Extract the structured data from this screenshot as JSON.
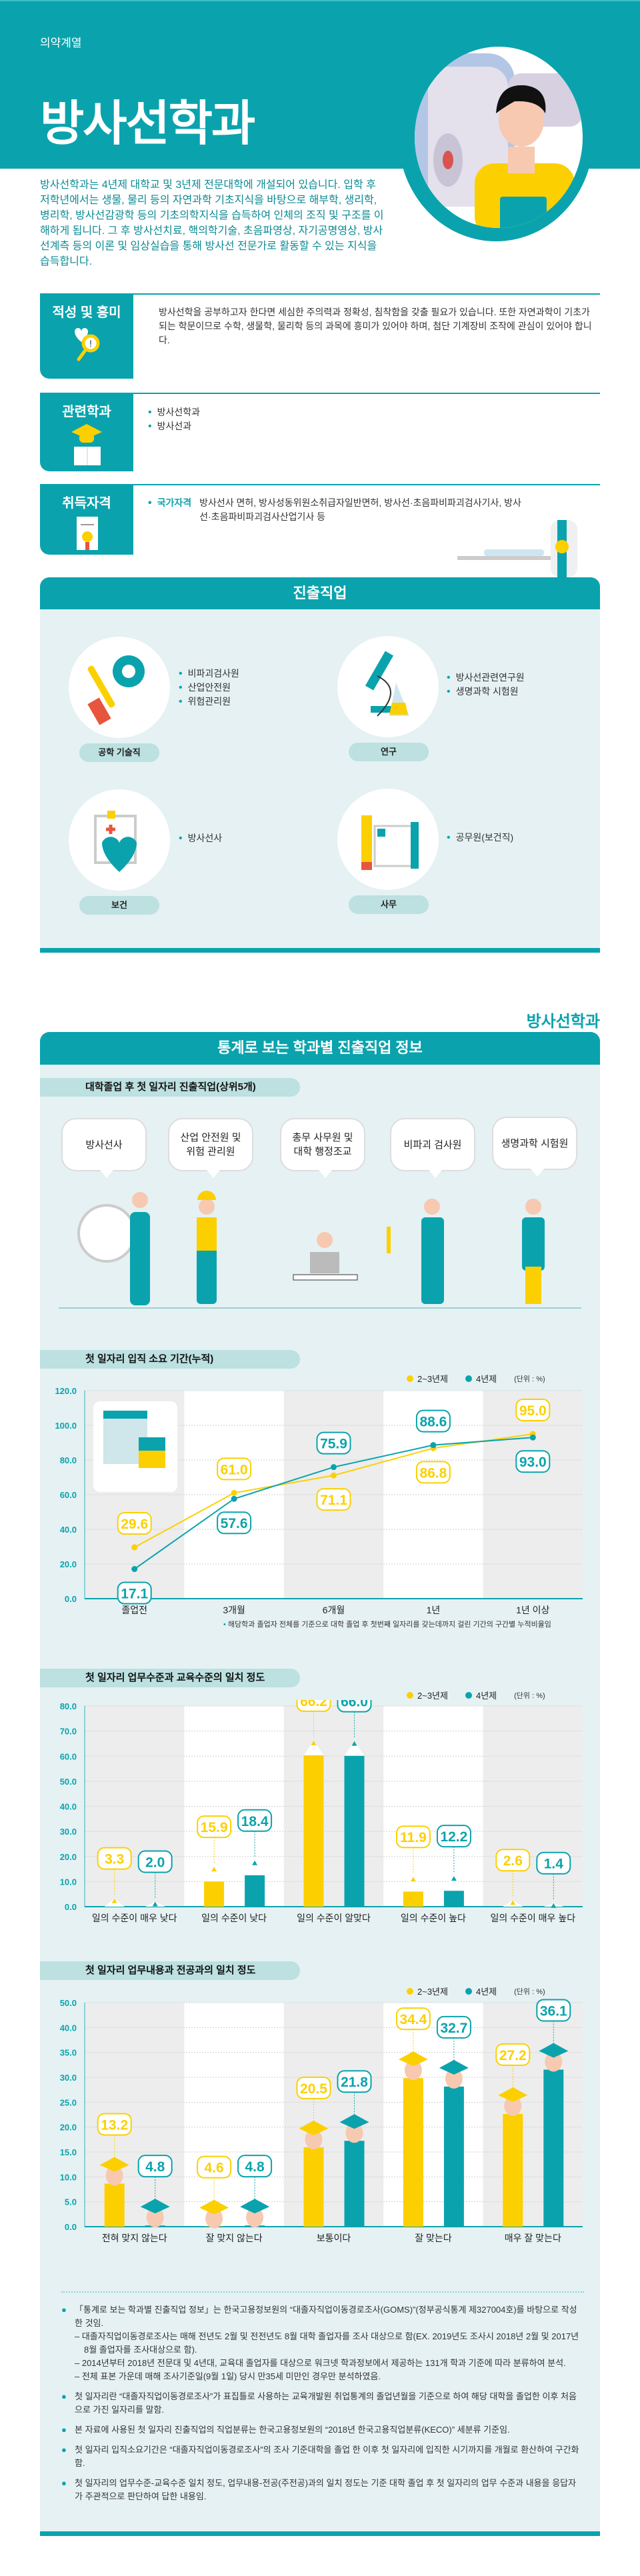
{
  "header": {
    "category": "의약계열",
    "title": "방사선학과"
  },
  "intro": "방사선학과는 4년제 대학교 및 3년제 전문대학에 개설되어 있습니다. 입학 후 저학년에서는 생물, 물리 등의 자연과학 기초지식을 바탕으로 해부학, 생리학, 병리학, 방사선감광학 등의 기초의학지식을 습득하여 인체의 조직 및 구조를 이해하게 됩니다. 그 후 방사선치료, 핵의학기술, 초음파영상, 자기공명영상, 방사선계측 등의 이론 및 임상실습을 통해 방사선 전문가로 활동할 수 있는 지식을 습득합니다.",
  "sections": {
    "aptitude": {
      "title": "적성 및 흥미",
      "text": "방사선학을 공부하고자 한다면 세심한 주의력과 정확성, 침착함을 갖출 필요가 있습니다. 또한 자연과학이 기초가 되는 학문이므로 수학, 생물학, 물리학 등의 과목에 흥미가 있어야 하며, 첨단 기계장비 조작에 관심이 있어야 합니다."
    },
    "related": {
      "title": "관련학과",
      "items": [
        "방사선학과",
        "방사선과"
      ]
    },
    "license": {
      "title": "취득자격",
      "label": "국가자격",
      "text": "방사선사 면허, 방사성동위원소취급자일반면허, 방사선·초음파비파괴검사기사, 방사선·초음파비파괴검사산업기사 등"
    }
  },
  "careers": {
    "title": "진출직업",
    "groups": [
      {
        "label": "공학 기술직",
        "items": [
          "비파괴검사원",
          "산업안전원",
          "위험관리원"
        ]
      },
      {
        "label": "연구",
        "items": [
          "방사선관련연구원",
          "생명과학 시험원"
        ]
      },
      {
        "label": "보건",
        "items": [
          "방사선사"
        ]
      },
      {
        "label": "사무",
        "items": [
          "공무원(보건직)"
        ]
      }
    ]
  },
  "stats": {
    "dept_label": "방사선학과",
    "title": "통계로 보는 학과별 진출직업 정보",
    "top5_title": "대학졸업 후 첫 일자리 진출직업(상위5개)",
    "top5": [
      "방사선사",
      "산업 안전원 및 위험 관리원",
      "총무 사무원 및 대학 행정조교",
      "비파괴 검사원",
      "생명과학 시험원"
    ],
    "legend": {
      "a": "2~3년제",
      "b": "4년제",
      "unit": "(단위 : %)"
    },
    "colors": {
      "a": "#fcd000",
      "b": "#0aa3ad"
    }
  },
  "chart_data": [
    {
      "type": "line",
      "title": "첫 일자리 입직 소요 기간(누적)",
      "categories": [
        "졸업전",
        "3개월",
        "6개월",
        "1년",
        "1년 이상"
      ],
      "yticks": [
        "0.0",
        "20.0",
        "40.0",
        "60.0",
        "80.0",
        "100.0",
        "120.0"
      ],
      "ylim": [
        0,
        120
      ],
      "series": [
        {
          "name": "2~3년제",
          "values": [
            29.6,
            61.0,
            71.1,
            86.8,
            95.0
          ]
        },
        {
          "name": "4년제",
          "values": [
            17.1,
            57.6,
            75.9,
            88.6,
            93.0
          ]
        }
      ],
      "note": "해당학과 졸업자 전체를 기준으로 대학 졸업 후 첫번째 일자리를 갖는데까지 걸린 기간의 구간별 누적비율임"
    },
    {
      "type": "bar",
      "title": "첫 일자리 업무수준과 교육수준의 일치 정도",
      "categories": [
        "일의 수준이 매우 낮다",
        "일의 수준이 낮다",
        "일의 수준이 알맞다",
        "일의 수준이 높다",
        "일의 수준이 매우 높다"
      ],
      "yticks": [
        "0.0",
        "10.0",
        "20.0",
        "30.0",
        "40.0",
        "50.0",
        "60.0",
        "70.0",
        "80.0"
      ],
      "ylim": [
        0,
        80
      ],
      "series": [
        {
          "name": "2~3년제",
          "values": [
            3.3,
            15.9,
            66.2,
            11.9,
            2.6
          ]
        },
        {
          "name": "4년제",
          "values": [
            2.0,
            18.4,
            66.0,
            12.2,
            1.4
          ]
        }
      ]
    },
    {
      "type": "bar",
      "title": "첫 일자리 업무내용과 전공과의 일치 정도",
      "categories": [
        "전혀 맞지 않는다",
        "잘 맞지 않는다",
        "보통이다",
        "잘 맞는다",
        "매우 잘 맞는다"
      ],
      "yticks": [
        "0.0",
        "5.0",
        "10.0",
        "15.0",
        "20.0",
        "25.0",
        "30.0",
        "35.0",
        "40.0",
        "50.0"
      ],
      "series": [
        {
          "name": "2~3년제",
          "values": [
            13.2,
            4.6,
            20.5,
            34.4,
            27.2
          ]
        },
        {
          "name": "4년제",
          "values": [
            4.8,
            4.8,
            21.8,
            32.7,
            36.1
          ]
        }
      ]
    }
  ],
  "notes": [
    {
      "text": "「통계로 보는 학과별 진출직업 정보」는 한국고용정보원의 “대졸자직업이동경로조사(GOMS)”(정부공식통계 제327004호)를 바탕으로 작성한 것임.",
      "subs": [
        "대졸자직업이동경로조사는 매해 전년도 2월 및 전전년도 8월 대학 졸업자를 조사 대상으로 함(EX. 2019년도 조사시 2018년 2월 및 2017년 8월 졸업자를 조사대상으로 함).",
        "2014년부터 2018년 전문대 및 4년대, 교육대 졸업자를 대상으로 워크넷 학과정보에서 제공하는 131개 학과 기준에 따라 분류하여 분석.",
        "전체 표본 가운데 매해 조사기준일(9월 1일) 당시 만35세 미만인 경우만 분석하였음."
      ]
    },
    {
      "text": "첫 일자리란 “대졸자직업이동경로조사”가 표집틀로 사용하는 교육개발원 취업통계의 졸업년월을 기준으로 하여 해당 대학을 졸업한 이후 처음으로 가진 일자리를 말함."
    },
    {
      "text": "본 자료에 사용된 첫 일자리 진출직업의 직업분류는 한국고용정보원의 “2018년 한국고용직업분류(KECO)” 세분류 기준임."
    },
    {
      "text": "첫 일자리 입직소요기간은 “대졸자직업이동경로조사”의 조사 기준대학을 졸업 한 이후 첫 일자리에 입직한 시기까지를 개월로 환산하여 구간화함."
    },
    {
      "text": "첫 일자리의 업무수준-교육수준 일치 정도, 업무내용-전공(주전공)과의 일치 정도는 기준 대학 졸업 후 첫 일자리의 업무 수준과 내용을 응답자가 주관적으로 판단하여 답한 내용임."
    }
  ]
}
